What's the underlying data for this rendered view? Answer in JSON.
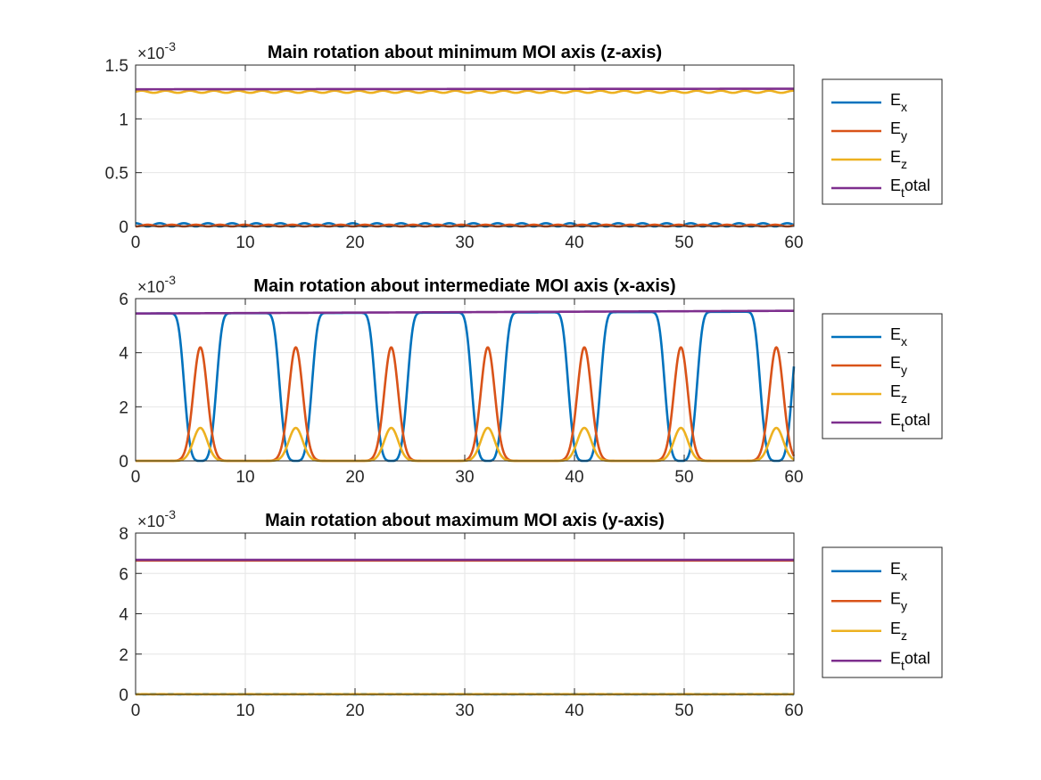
{
  "figure": {
    "background": "#ffffff"
  },
  "colors": {
    "ex": "#0072BD",
    "ey": "#D95319",
    "ez": "#EDB120",
    "etotal": "#7E2F8E",
    "grid": "#e6e6e6",
    "axis": "#262626"
  },
  "chart_data": [
    {
      "type": "line",
      "title": "Main rotation about minimum MOI axis (z-axis)",
      "xlabel": "",
      "ylabel": "",
      "xlim": [
        0,
        60
      ],
      "ylim": [
        0,
        0.0015
      ],
      "exponent_label": "×10",
      "exponent_power": "-3",
      "scale_exponent": -3,
      "xticks": [
        0,
        10,
        20,
        30,
        40,
        50,
        60
      ],
      "yticks": [
        0,
        0.0005,
        0.001,
        0.0015
      ],
      "ytick_labels": [
        "0",
        "0.5",
        "1",
        "1.5"
      ],
      "grid": true,
      "legend_position": "outside-right",
      "legend": [
        {
          "base": "E",
          "sub": "x",
          "suffix": ""
        },
        {
          "base": "E",
          "sub": "y",
          "suffix": ""
        },
        {
          "base": "E",
          "sub": "z",
          "suffix": ""
        },
        {
          "base": "E",
          "sub": "t",
          "suffix": "otal"
        }
      ],
      "series": [
        {
          "key": "ex",
          "approx": {
            "kind": "ripple",
            "base": 1.5e-05,
            "amp": 1.5e-05,
            "period": 2.2
          }
        },
        {
          "key": "ey",
          "approx": {
            "kind": "ripple",
            "base": 8e-06,
            "amp": 8e-06,
            "period": 2.2,
            "phase": 1.1
          }
        },
        {
          "key": "ez",
          "approx": {
            "kind": "ripple",
            "base": 0.001252,
            "amp": 1e-05,
            "period": 2.2,
            "phase": 0.55
          }
        },
        {
          "key": "etotal",
          "approx": {
            "kind": "linear",
            "start": 0.001275,
            "end": 0.00128
          }
        }
      ]
    },
    {
      "type": "line",
      "title": "Main rotation about intermediate MOI axis (x-axis)",
      "xlabel": "",
      "ylabel": "",
      "xlim": [
        0,
        60
      ],
      "ylim": [
        0,
        0.006
      ],
      "exponent_label": "×10",
      "exponent_power": "-3",
      "scale_exponent": -3,
      "xticks": [
        0,
        10,
        20,
        30,
        40,
        50,
        60
      ],
      "yticks": [
        0,
        0.002,
        0.004,
        0.006
      ],
      "ytick_labels": [
        "0",
        "2",
        "4",
        "6"
      ],
      "grid": true,
      "legend_position": "outside-right",
      "legend": [
        {
          "base": "E",
          "sub": "x",
          "suffix": ""
        },
        {
          "base": "E",
          "sub": "y",
          "suffix": ""
        },
        {
          "base": "E",
          "sub": "z",
          "suffix": ""
        },
        {
          "base": "E",
          "sub": "t",
          "suffix": "otal"
        }
      ],
      "dip_centers": [
        5.9,
        14.6,
        23.3,
        32.1,
        40.9,
        49.7,
        58.4
      ],
      "series": [
        {
          "key": "ex",
          "approx": {
            "kind": "flip",
            "top_start": 0.00545,
            "top_end": 0.00552
          }
        },
        {
          "key": "ey",
          "approx": {
            "kind": "pulse",
            "peak": 0.0042,
            "width": 0.85
          }
        },
        {
          "key": "ez",
          "approx": {
            "kind": "pulse",
            "peak": 0.00122,
            "width": 0.85
          }
        },
        {
          "key": "etotal",
          "approx": {
            "kind": "linear",
            "start": 0.00545,
            "end": 0.00555
          }
        }
      ]
    },
    {
      "type": "line",
      "title": "Main rotation about maximum MOI axis (y-axis)",
      "xlabel": "",
      "ylabel": "",
      "xlim": [
        0,
        60
      ],
      "ylim": [
        0,
        0.008
      ],
      "exponent_label": "×10",
      "exponent_power": "-3",
      "scale_exponent": -3,
      "xticks": [
        0,
        10,
        20,
        30,
        40,
        50,
        60
      ],
      "yticks": [
        0,
        0.002,
        0.004,
        0.006,
        0.008
      ],
      "ytick_labels": [
        "0",
        "2",
        "4",
        "6",
        "8"
      ],
      "grid": true,
      "legend_position": "outside-right",
      "legend": [
        {
          "base": "E",
          "sub": "x",
          "suffix": ""
        },
        {
          "base": "E",
          "sub": "y",
          "suffix": ""
        },
        {
          "base": "E",
          "sub": "z",
          "suffix": ""
        },
        {
          "base": "E",
          "sub": "t",
          "suffix": "otal"
        }
      ],
      "series": [
        {
          "key": "ex",
          "approx": {
            "kind": "ripple",
            "base": 1e-05,
            "amp": 6e-06,
            "period": 1.6
          }
        },
        {
          "key": "ey",
          "approx": {
            "kind": "linear",
            "start": 0.00664,
            "end": 0.00664
          }
        },
        {
          "key": "ez",
          "approx": {
            "kind": "ripple",
            "base": 1e-05,
            "amp": 6e-06,
            "period": 1.6,
            "phase": 0.8
          }
        },
        {
          "key": "etotal",
          "approx": {
            "kind": "linear",
            "start": 0.00667,
            "end": 0.00667
          }
        }
      ]
    }
  ]
}
